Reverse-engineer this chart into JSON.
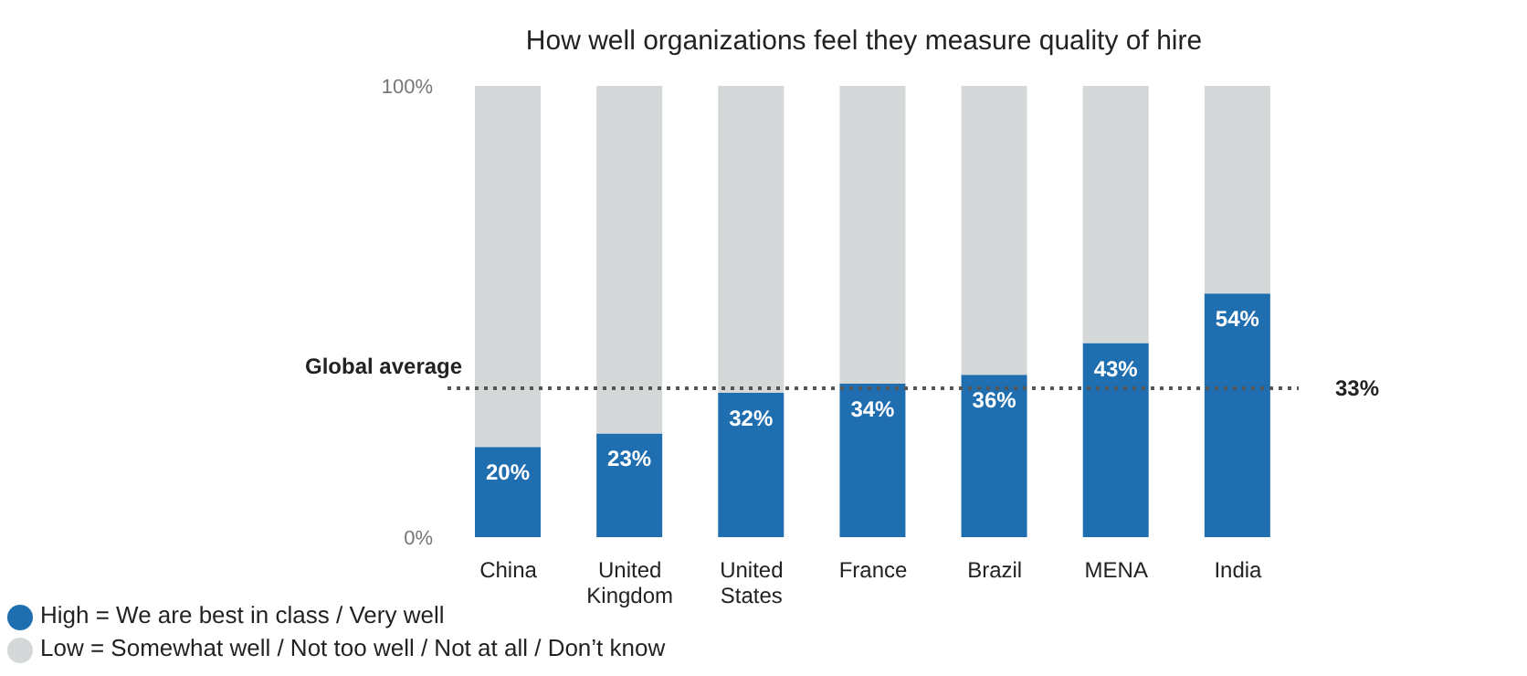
{
  "chart_data": {
    "type": "bar",
    "title": "How well organizations feel they measure quality of hire",
    "categories": [
      "China",
      "United Kingdom",
      "United States",
      "France",
      "Brazil",
      "MENA",
      "India"
    ],
    "stacked": true,
    "series": [
      {
        "name": "High = We are best in class / Very well",
        "color": "#1f6eb0",
        "values": [
          20,
          23,
          32,
          34,
          36,
          43,
          54
        ],
        "value_labels": [
          "20%",
          "23%",
          "32%",
          "34%",
          "36%",
          "43%",
          "54%"
        ]
      },
      {
        "name": "Low = Somewhat well / Not too well / Not at all / Don’t know",
        "color": "#d5d8d8",
        "values": [
          80,
          77,
          68,
          66,
          64,
          57,
          46
        ]
      }
    ],
    "ylim": [
      0,
      100
    ],
    "yticks": [
      {
        "value": 0,
        "label": "0%"
      },
      {
        "value": 100,
        "label": "100%"
      }
    ],
    "ref_lines": [
      {
        "axis": "y",
        "value": 33,
        "label": "33%",
        "color": "#555555",
        "line_style": "dotted"
      }
    ],
    "annotations": [
      "Global average"
    ],
    "legend": "bottom left"
  }
}
